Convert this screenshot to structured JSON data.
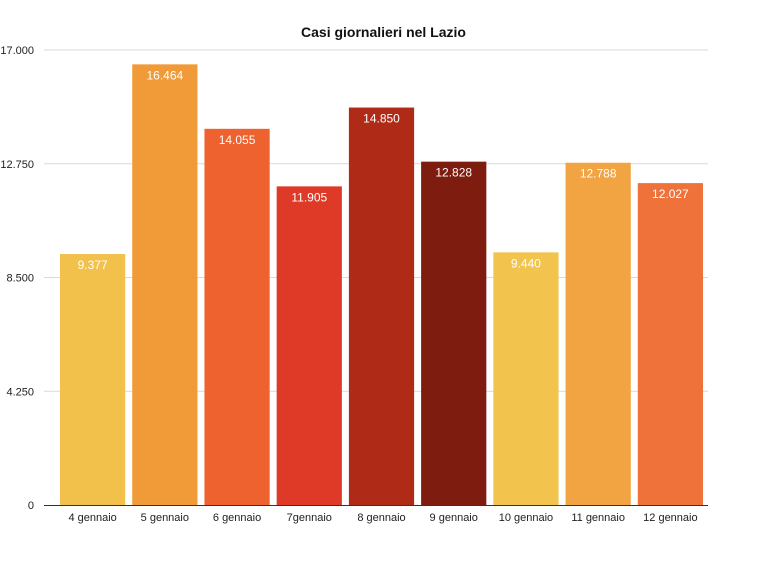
{
  "chart_data": {
    "type": "bar",
    "title": "Casi giornalieri nel Lazio",
    "xlabel": "",
    "ylabel": "",
    "categories": [
      "4 gennaio",
      "5 gennaio",
      "6 gennaio",
      "7gennaio",
      "8 gennaio",
      "9 gennaio",
      "10 gennaio",
      "11 gennaio",
      "12 gennaio"
    ],
    "values": [
      9377,
      16464,
      14055,
      11905,
      14850,
      12828,
      9440,
      12788,
      12027
    ],
    "value_labels": [
      "9.377",
      "16.464",
      "14.055",
      "11.905",
      "14.850",
      "12.828",
      "9.440",
      "12.788",
      "12.027"
    ],
    "colors": [
      "#f1c14b",
      "#f09a38",
      "#ed622f",
      "#de3a27",
      "#b02a18",
      "#7d1c0f",
      "#f2c44d",
      "#f2a342",
      "#ef723a"
    ],
    "ylim": [
      0,
      17000
    ],
    "yticks": [
      0,
      4250,
      8500,
      12750,
      17000
    ],
    "ytick_labels": [
      "0",
      "4.250",
      "8.500",
      "12.750",
      "17.000"
    ],
    "grid": true,
    "legend": "none"
  }
}
